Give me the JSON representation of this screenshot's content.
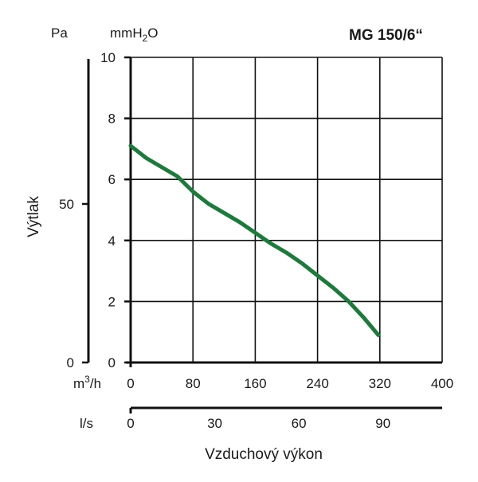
{
  "chart_data": {
    "type": "line",
    "title": "MG 150/6“",
    "y_units": {
      "primary": "mmH2O",
      "secondary": "Pa"
    },
    "ylabel": "Výtlak",
    "xlabel": "Vzduchový výkon",
    "x_units": {
      "primary": "m3/h",
      "secondary": "l/s"
    },
    "xlim": [
      0,
      400
    ],
    "ylim": [
      0,
      10
    ],
    "x_ticks": [
      "0",
      "80",
      "160",
      "240",
      "320",
      "400"
    ],
    "x_ticks_values": [
      0,
      80,
      160,
      240,
      320,
      400
    ],
    "y_ticks": [
      "10",
      "8",
      "6",
      "4",
      "2",
      "0"
    ],
    "y_ticks_values": [
      10,
      8,
      6,
      4,
      2,
      0
    ],
    "secondary_y_ticks": [
      {
        "label": "50",
        "value": 50
      },
      {
        "label": "0",
        "value": 0
      }
    ],
    "secondary_x_ticks": [
      {
        "label": "0",
        "value": 0
      },
      {
        "label": "30",
        "value": 30
      },
      {
        "label": "60",
        "value": 60
      },
      {
        "label": "90",
        "value": 90
      }
    ],
    "grid": true,
    "series": [
      {
        "color": "#1e7a3c",
        "x": [
          0,
          20,
          40,
          60,
          80,
          100,
          120,
          140,
          160,
          180,
          200,
          220,
          240,
          260,
          280,
          300,
          318
        ],
        "y": [
          7.1,
          6.7,
          6.4,
          6.1,
          5.6,
          5.2,
          4.9,
          4.6,
          4.25,
          3.9,
          3.6,
          3.25,
          2.85,
          2.45,
          2.0,
          1.45,
          0.9
        ]
      }
    ]
  }
}
